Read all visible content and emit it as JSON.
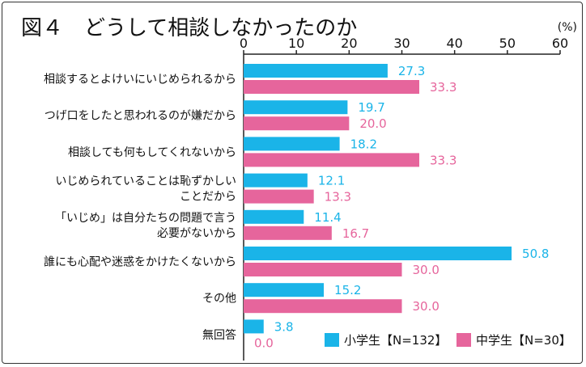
{
  "chart_data": {
    "type": "bar",
    "orientation": "horizontal",
    "title": "図４　どうして相談しなかったのか",
    "unit": "(%)",
    "xlim": [
      0,
      60
    ],
    "xticks": [
      0,
      10,
      20,
      30,
      40,
      50,
      60
    ],
    "categories": [
      [
        "相談するとよけいにいじめられるから"
      ],
      [
        "つげ口をしたと思われるのが嫌だから"
      ],
      [
        "相談しても何もしてくれないから"
      ],
      [
        "いじめられていることは恥ずかしい",
        "ことだから"
      ],
      [
        "「いじめ」は自分たちの問題で言う",
        "必要がないから"
      ],
      [
        "誰にも心配や迷惑をかけたくないから"
      ],
      [
        "その他"
      ],
      [
        "無回答"
      ]
    ],
    "series": [
      {
        "name": "小学生【N=132】",
        "color": "#1ab4e8",
        "values": [
          27.3,
          19.7,
          18.2,
          12.1,
          11.4,
          50.8,
          15.2,
          3.8
        ]
      },
      {
        "name": "中学生【N=30】",
        "color": "#e6659c",
        "values": [
          33.3,
          20.0,
          33.3,
          13.3,
          16.7,
          30.0,
          30.0,
          0.0
        ]
      }
    ],
    "legend_position": "bottom-right",
    "grid": false
  }
}
